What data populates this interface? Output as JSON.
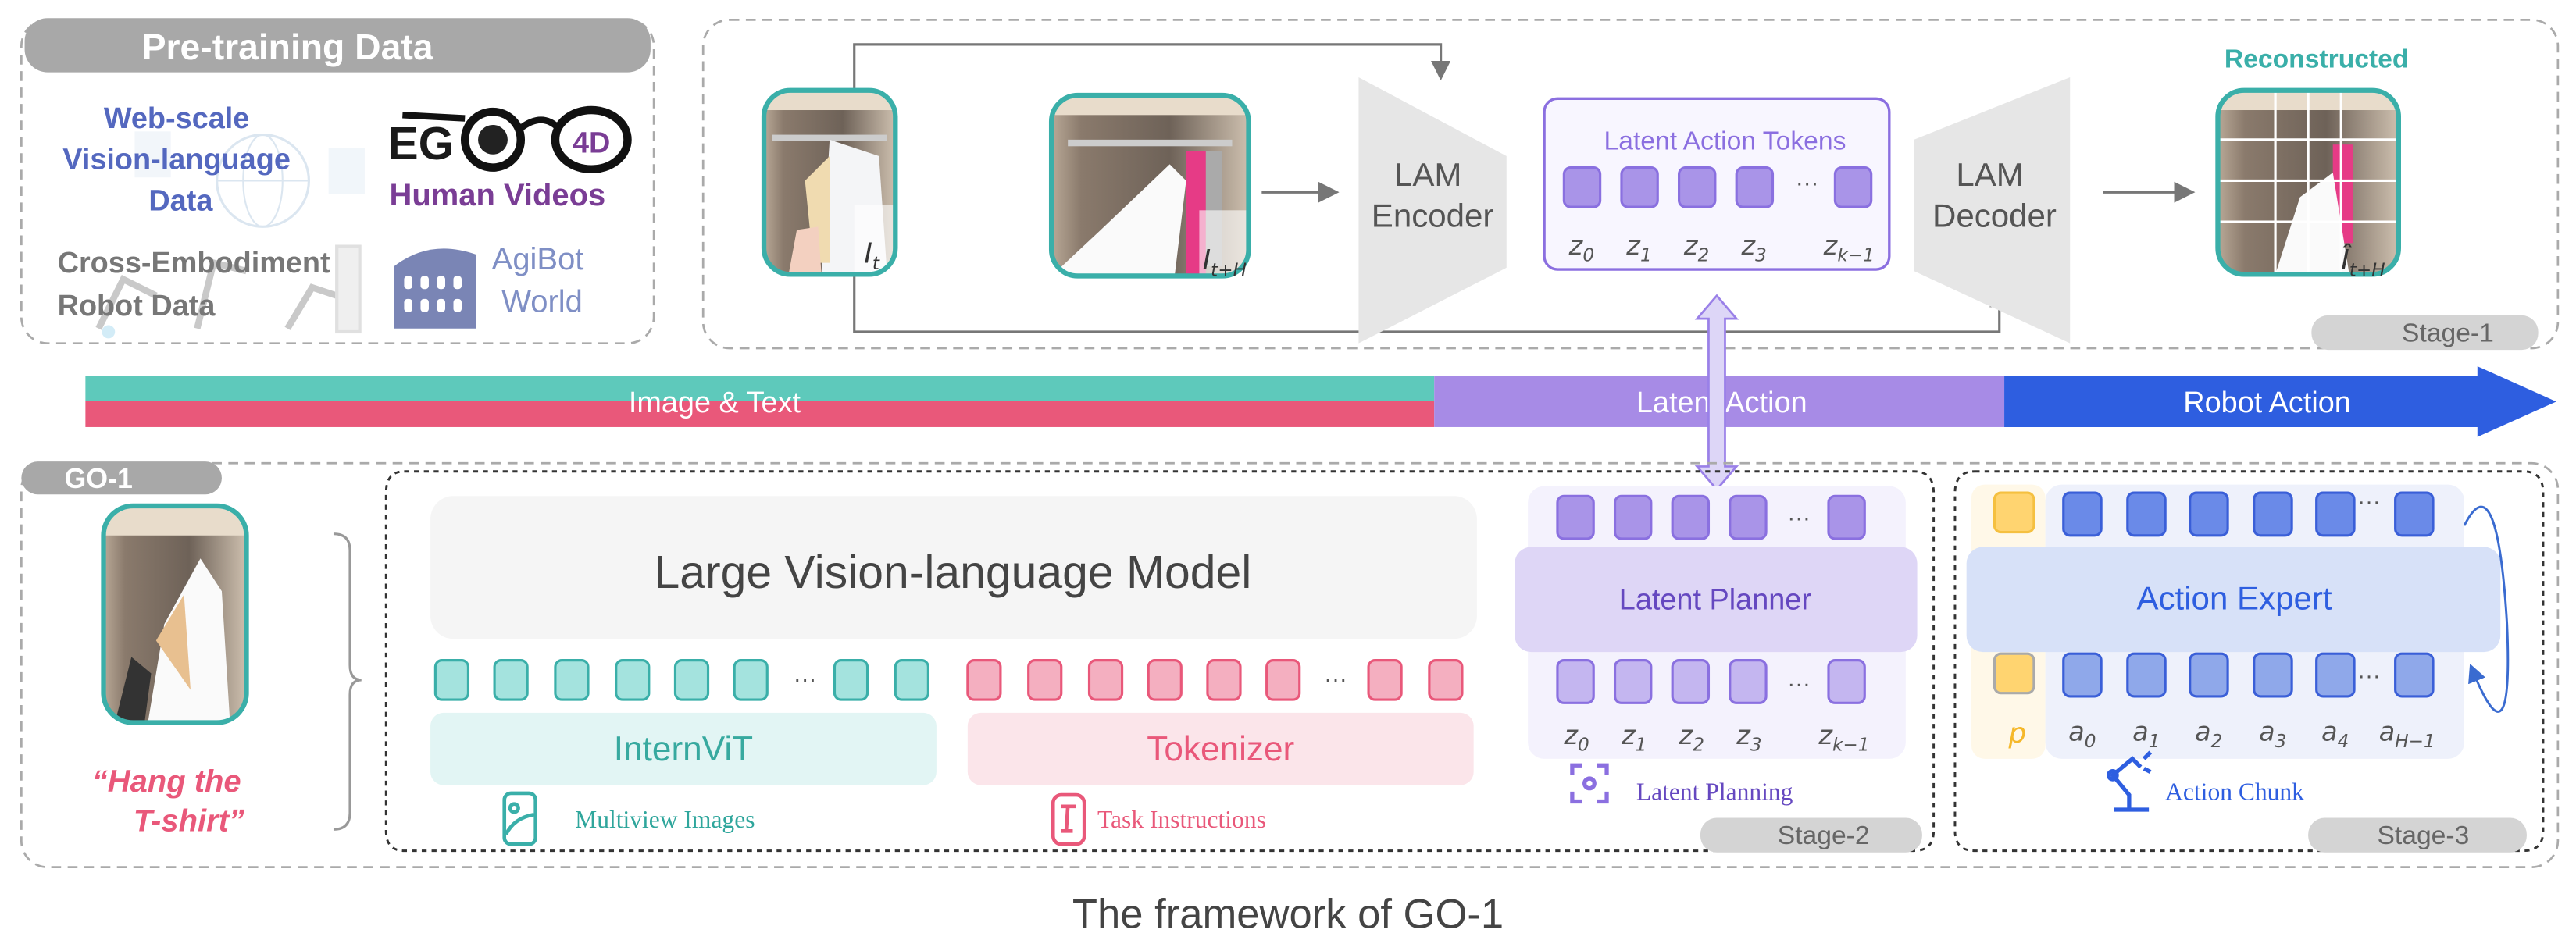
{
  "pretraining": {
    "title": "Pre-training Data",
    "web_scale": [
      "Web-scale",
      "Vision-language",
      "Data"
    ],
    "ego4d_logo": "EGO 4D",
    "human_videos": "Human Videos",
    "cross_embodiment": [
      "Cross-Embodiment",
      "Robot Data"
    ],
    "agibot": [
      "AgiBot",
      "World"
    ]
  },
  "stage1": {
    "image_t_label": {
      "base": "I",
      "sub": "t"
    },
    "image_tH_label": {
      "base": "I",
      "sub": "t+H"
    },
    "encoder": [
      "LAM",
      "Encoder"
    ],
    "latent_tokens_title": "Latent Action Tokens",
    "decoder": [
      "LAM",
      "Decoder"
    ],
    "reconstructed": "Reconstructed",
    "recon_label": {
      "base": "Î",
      "sub": "t+H"
    },
    "z_labels": [
      {
        "base": "z",
        "sub": "0"
      },
      {
        "base": "z",
        "sub": "1"
      },
      {
        "base": "z",
        "sub": "2"
      },
      {
        "base": "z",
        "sub": "3"
      },
      {
        "base": "z",
        "sub": "k−1"
      }
    ],
    "ellipsis": "···",
    "stage_label": "Stage-1"
  },
  "progress_bar": {
    "segments": [
      {
        "label": "Image & Text",
        "colors": [
          "#5ec9bb",
          "#e9587a"
        ]
      },
      {
        "label": "Latent Action",
        "colors": [
          "#a78be6"
        ]
      },
      {
        "label": "Robot Action",
        "colors": [
          "#2e5ee0"
        ]
      }
    ]
  },
  "go1": {
    "title": "GO-1",
    "instruction": [
      "“Hang the",
      "T-shirt”"
    ],
    "lvlm": "Large Vision-language Model",
    "internvit": "InternViT",
    "tokenizer": "Tokenizer",
    "multiview_images": "Multiview Images",
    "task_instructions": "Task Instructions",
    "latent_planner": "Latent Planner",
    "latent_planning": "Latent Planning",
    "stage2_label": "Stage-2",
    "action_expert": "Action Expert",
    "action_chunk": "Action Chunk",
    "p_label": "p",
    "a_labels": [
      {
        "base": "a",
        "sub": "0"
      },
      {
        "base": "a",
        "sub": "1"
      },
      {
        "base": "a",
        "sub": "2"
      },
      {
        "base": "a",
        "sub": "3"
      },
      {
        "base": "a",
        "sub": "4"
      },
      {
        "base": "a",
        "sub": "H−1"
      }
    ],
    "stage3_label": "Stage-3"
  },
  "caption": "The framework of GO-1",
  "colors": {
    "teal": "#3aafa9",
    "pink": "#e9587a",
    "purple": "#8b6fe0",
    "blue": "#2e5ee0",
    "gray_pill": "#a8a8a8"
  }
}
